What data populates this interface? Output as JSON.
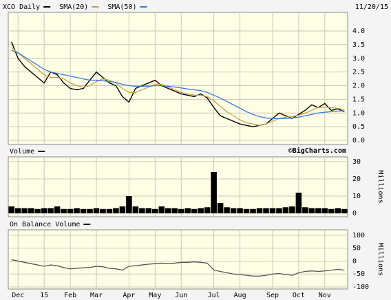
{
  "chart_data": [
    {
      "type": "line",
      "title": "XCO Daily",
      "date": "11/20/15",
      "watermark": "©BigCharts.com",
      "series": [
        {
          "name": "XCO Daily",
          "color": "#000000",
          "values": [
            3.6,
            3.0,
            2.7,
            2.5,
            2.3,
            2.1,
            2.5,
            2.4,
            2.1,
            1.9,
            1.85,
            1.9,
            2.2,
            2.5,
            2.3,
            2.1,
            2.0,
            1.6,
            1.4,
            1.9,
            2.0,
            2.1,
            2.2,
            2.0,
            1.9,
            1.8,
            1.7,
            1.65,
            1.6,
            1.7,
            1.55,
            1.2,
            0.9,
            0.8,
            0.7,
            0.6,
            0.55,
            0.5,
            0.55,
            0.6,
            0.8,
            1.0,
            0.9,
            0.8,
            0.95,
            1.1,
            1.3,
            1.2,
            1.35,
            1.1,
            1.15,
            1.05
          ]
        },
        {
          "name": "SMA(20)",
          "color": "#c8a050",
          "values": [
            3.4,
            3.2,
            3.0,
            2.8,
            2.6,
            2.4,
            2.3,
            2.3,
            2.25,
            2.1,
            2.0,
            1.95,
            2.0,
            2.15,
            2.25,
            2.2,
            2.1,
            1.9,
            1.75,
            1.75,
            1.85,
            1.95,
            2.05,
            2.05,
            1.95,
            1.85,
            1.75,
            1.7,
            1.65,
            1.65,
            1.6,
            1.45,
            1.25,
            1.05,
            0.9,
            0.75,
            0.65,
            0.6,
            0.55,
            0.6,
            0.7,
            0.8,
            0.85,
            0.87,
            0.92,
            1.0,
            1.1,
            1.2,
            1.22,
            1.2,
            1.17,
            1.12
          ]
        },
        {
          "name": "SMA(50)",
          "color": "#3a78d8",
          "values": [
            3.3,
            3.2,
            3.05,
            2.9,
            2.75,
            2.6,
            2.5,
            2.45,
            2.4,
            2.35,
            2.3,
            2.25,
            2.2,
            2.2,
            2.18,
            2.15,
            2.12,
            2.05,
            2.0,
            1.98,
            1.98,
            1.98,
            2.0,
            2.0,
            1.98,
            1.95,
            1.92,
            1.88,
            1.85,
            1.82,
            1.75,
            1.65,
            1.55,
            1.42,
            1.3,
            1.18,
            1.05,
            0.95,
            0.87,
            0.82,
            0.8,
            0.8,
            0.8,
            0.82,
            0.85,
            0.9,
            0.95,
            1.0,
            1.03,
            1.05,
            1.07,
            1.08
          ]
        }
      ],
      "ylim": [
        -0.15,
        4.68
      ],
      "yticks": [
        {
          "value": 0,
          "label": "0.0"
        },
        0.5,
        {
          "value": 1,
          "label": "1.0"
        },
        1.5,
        {
          "value": 2,
          "label": "2.0"
        },
        2.5,
        {
          "value": 3,
          "label": "3.0"
        },
        3.5,
        {
          "value": 4,
          "label": "4.0"
        }
      ],
      "grid": true
    },
    {
      "type": "bar",
      "title": "Volume",
      "y_label": "Millions",
      "color": "#000000",
      "values": [
        4,
        3,
        3,
        3,
        2.5,
        3,
        3,
        4,
        2.5,
        2.5,
        3,
        2.5,
        2.5,
        3,
        2.5,
        2.5,
        3,
        4,
        10,
        4,
        3,
        3,
        2.5,
        4,
        3,
        3,
        2.5,
        3,
        2.5,
        3,
        3.5,
        24,
        6,
        3.5,
        3,
        3,
        2.5,
        2.5,
        3,
        3,
        3,
        3,
        3.5,
        4,
        12,
        3.5,
        3,
        3,
        3,
        2.5,
        3,
        2.5
      ],
      "ylim": [
        -2,
        32.8
      ],
      "yticks": [
        0,
        10,
        20,
        30
      ],
      "grid": true
    },
    {
      "type": "line",
      "title": "On Balance Volume",
      "y_label": "Millions",
      "color": "#555555",
      "values": [
        5,
        0,
        -5,
        -10,
        -15,
        -20,
        -15,
        -18,
        -25,
        -30,
        -28,
        -26,
        -25,
        -20,
        -22,
        -28,
        -30,
        -35,
        -20,
        -18,
        -15,
        -12,
        -10,
        -8,
        -10,
        -8,
        -5,
        -5,
        -3,
        -5,
        -8,
        -35,
        -40,
        -45,
        -50,
        -52,
        -55,
        -58,
        -58,
        -55,
        -50,
        -48,
        -52,
        -55,
        -45,
        -40,
        -38,
        -40,
        -38,
        -35,
        -32,
        -35
      ],
      "categories": [
        null,
        "Dec",
        null,
        null,
        null,
        "15",
        null,
        null,
        null,
        "Feb",
        null,
        null,
        null,
        "Mar",
        null,
        null,
        null,
        null,
        "Apr",
        null,
        null,
        null,
        "May",
        null,
        null,
        null,
        "Jun",
        null,
        null,
        null,
        null,
        "Jul",
        null,
        null,
        null,
        "Aug",
        null,
        null,
        null,
        null,
        "Sep",
        null,
        null,
        null,
        "Oct",
        null,
        null,
        null,
        "Nov",
        null,
        null,
        null
      ],
      "ylim": [
        -108,
        121
      ],
      "yticks": [
        -100,
        -50,
        0,
        50,
        100
      ],
      "grid": true
    }
  ]
}
